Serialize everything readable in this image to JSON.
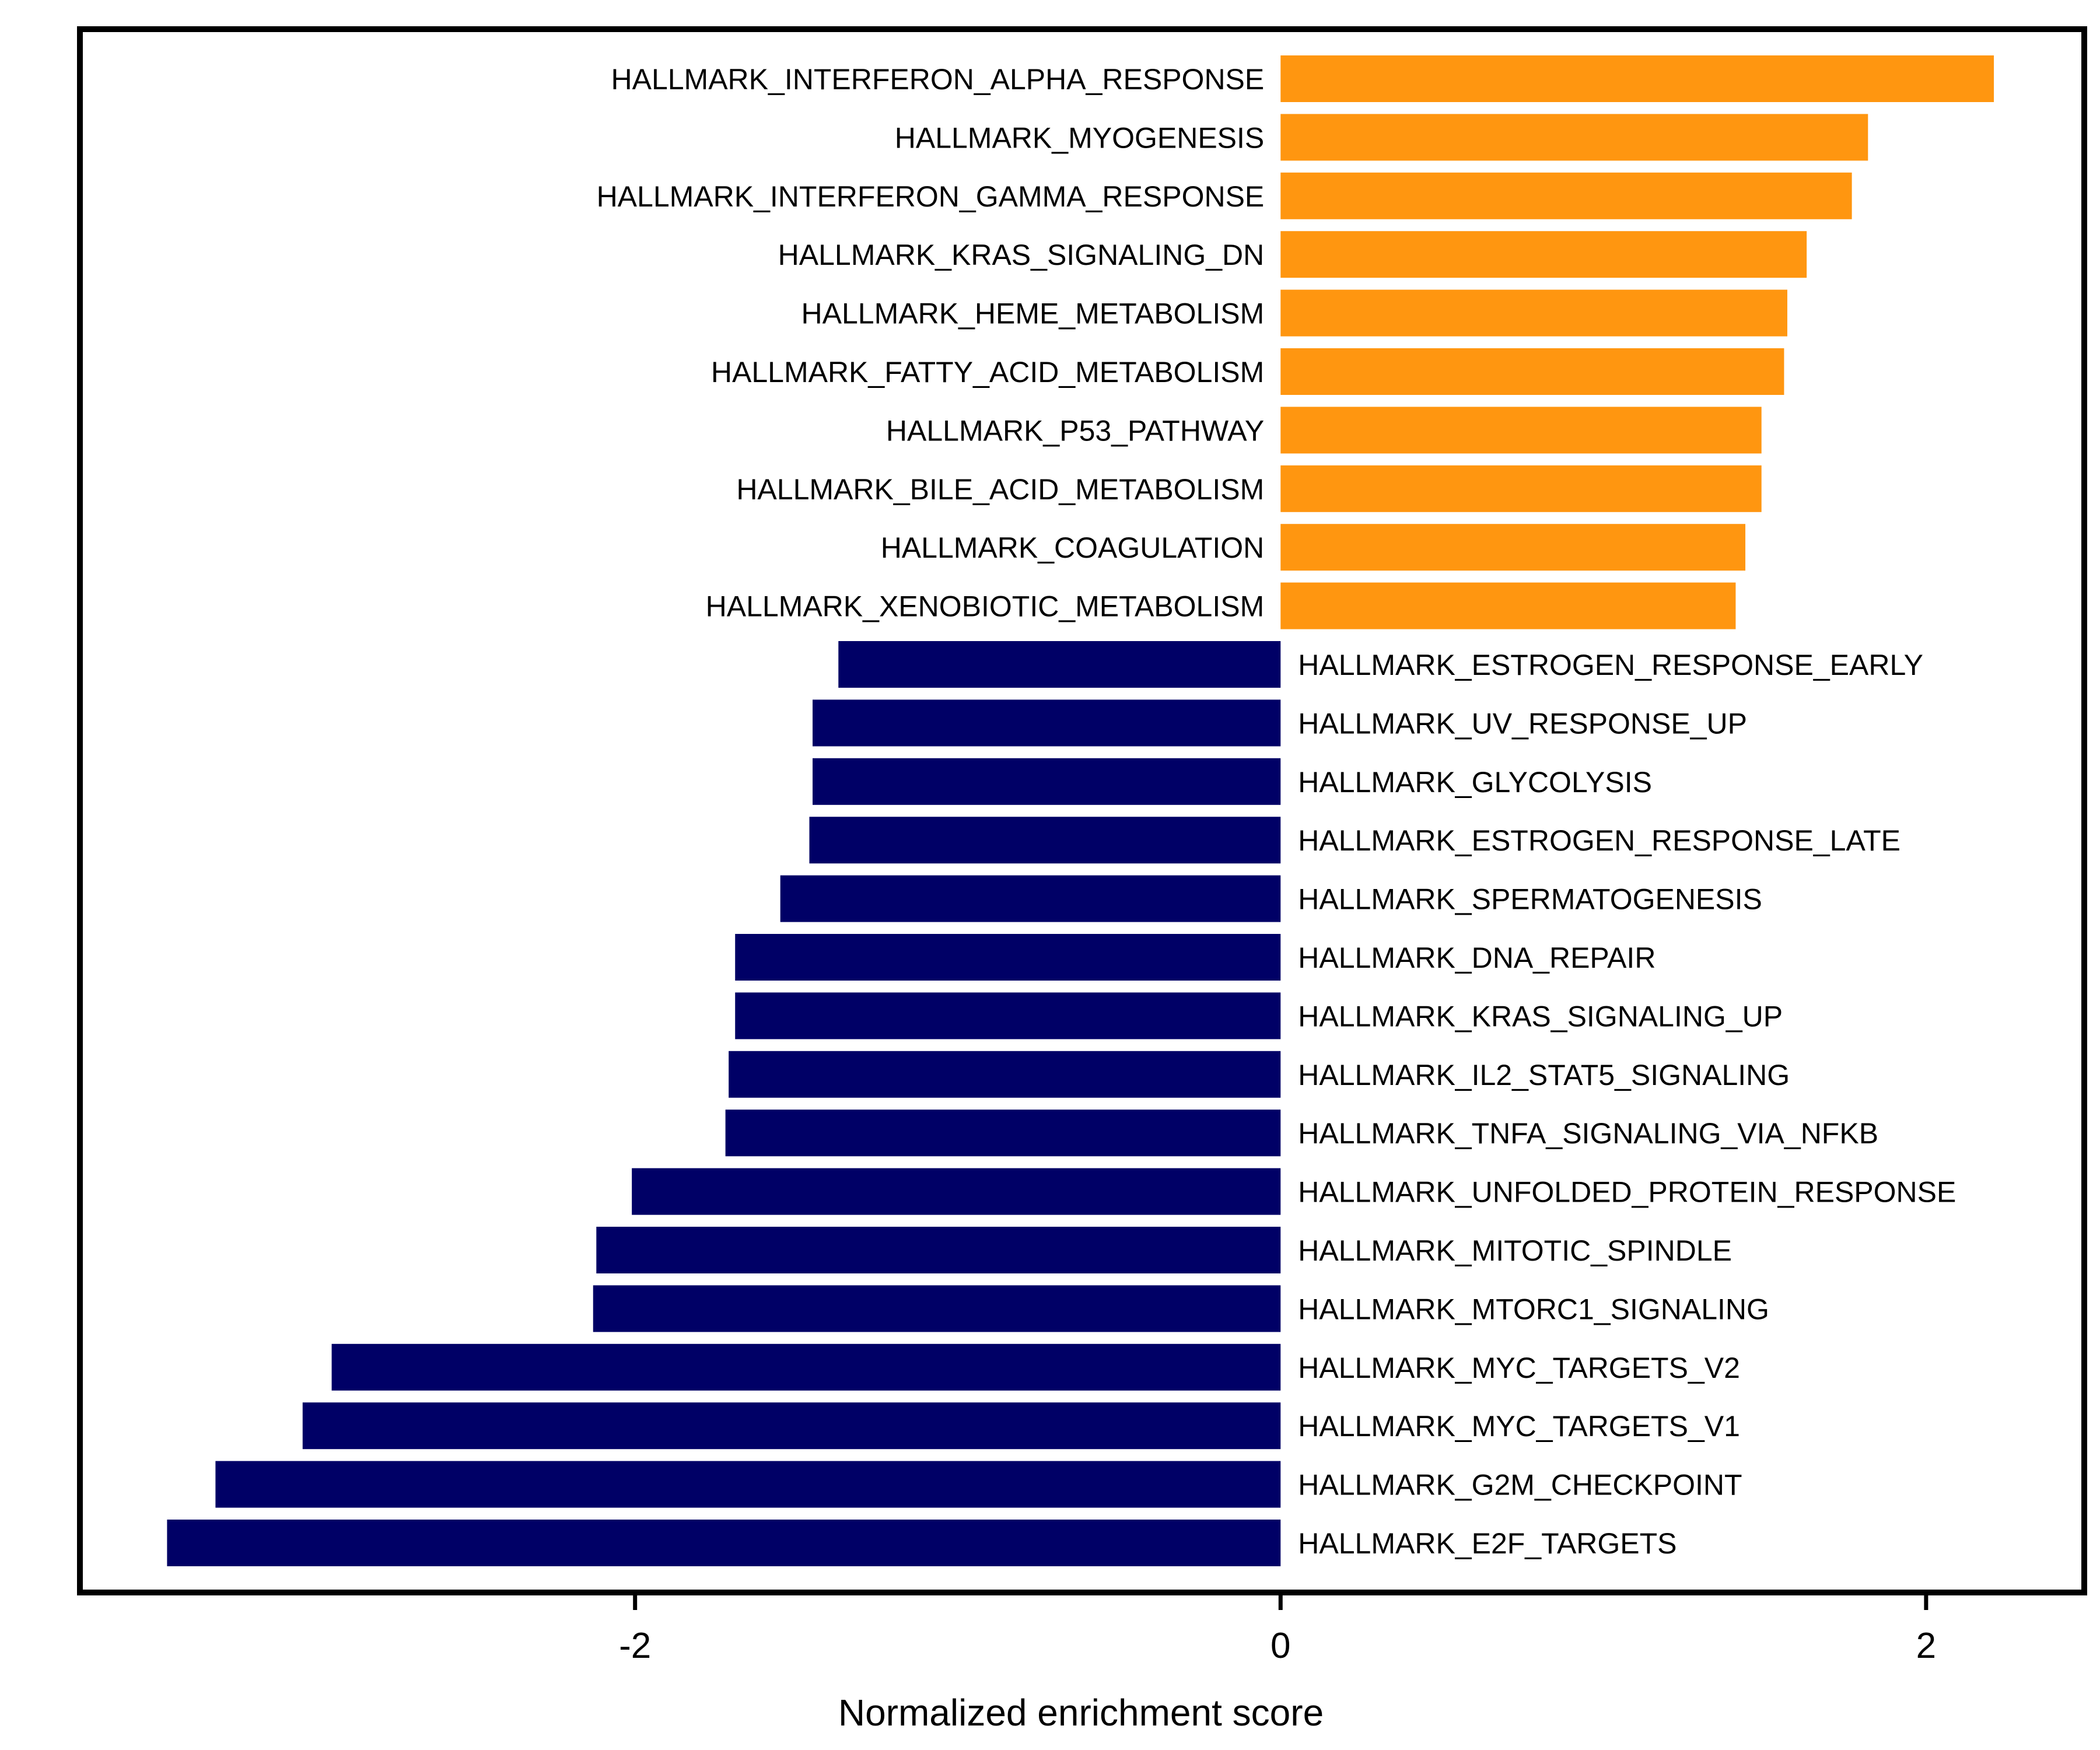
{
  "chart_data": {
    "type": "bar",
    "orientation": "horizontal",
    "xlabel": "Normalized enrichment score",
    "xlim": [
      -3.72,
      2.49
    ],
    "xticks": [
      -2,
      0,
      2
    ],
    "tick_labels": [
      "-2",
      "0",
      "2"
    ],
    "positive_color": "#FF9610",
    "negative_color": "#000066",
    "categories": [
      "HALLMARK_INTERFERON_ALPHA_RESPONSE",
      "HALLMARK_MYOGENESIS",
      "HALLMARK_INTERFERON_GAMMA_RESPONSE",
      "HALLMARK_KRAS_SIGNALING_DN",
      "HALLMARK_HEME_METABOLISM",
      "HALLMARK_FATTY_ACID_METABOLISM",
      "HALLMARK_P53_PATHWAY",
      "HALLMARK_BILE_ACID_METABOLISM",
      "HALLMARK_COAGULATION",
      "HALLMARK_XENOBIOTIC_METABOLISM",
      "HALLMARK_ESTROGEN_RESPONSE_EARLY",
      "HALLMARK_UV_RESPONSE_UP",
      "HALLMARK_GLYCOLYSIS",
      "HALLMARK_ESTROGEN_RESPONSE_LATE",
      "HALLMARK_SPERMATOGENESIS",
      "HALLMARK_DNA_REPAIR",
      "HALLMARK_KRAS_SIGNALING_UP",
      "HALLMARK_IL2_STAT5_SIGNALING",
      "HALLMARK_TNFA_SIGNALING_VIA_NFKB",
      "HALLMARK_UNFOLDED_PROTEIN_RESPONSE",
      "HALLMARK_MITOTIC_SPINDLE",
      "HALLMARK_MTORC1_SIGNALING",
      "HALLMARK_MYC_TARGETS_V2",
      "HALLMARK_MYC_TARGETS_V1",
      "HALLMARK_G2M_CHECKPOINT",
      "HALLMARK_E2F_TARGETS"
    ],
    "values": [
      2.21,
      1.82,
      1.77,
      1.63,
      1.57,
      1.56,
      1.49,
      1.49,
      1.44,
      1.41,
      -1.37,
      -1.45,
      -1.45,
      -1.46,
      -1.55,
      -1.69,
      -1.69,
      -1.71,
      -1.72,
      -2.01,
      -2.12,
      -2.13,
      -2.94,
      -3.03,
      -3.3,
      -3.45
    ],
    "grid": false,
    "legend": "none"
  }
}
